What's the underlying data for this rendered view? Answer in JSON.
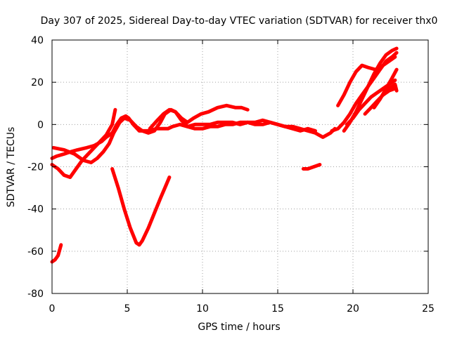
{
  "chart_data": {
    "type": "line",
    "title": "Day 307 of 2025, Sidereal Day-to-day VTEC variation (SDTVAR) for receiver thx0",
    "xlabel": "GPS time / hours",
    "ylabel": "SDTVAR / TECUs",
    "xlim": [
      0,
      25
    ],
    "ylim": [
      -80,
      40
    ],
    "xticks": [
      0,
      5,
      10,
      15,
      20,
      25
    ],
    "yticks": [
      -80,
      -60,
      -40,
      -20,
      0,
      20,
      40
    ],
    "grid": true,
    "legend": "none",
    "color": "#ff0000",
    "series": [
      {
        "name": "s1",
        "x": [
          0.0,
          0.2,
          0.4,
          0.6
        ],
        "y": [
          -65,
          -64,
          -62,
          -57
        ]
      },
      {
        "name": "s2",
        "x": [
          0.0,
          0.3,
          0.8,
          1.2,
          1.7,
          2.3,
          2.8,
          3.3,
          3.6,
          4.0,
          4.3,
          4.6,
          4.9,
          5.1,
          5.4,
          5.8,
          6.1,
          6.5,
          6.9,
          7.3,
          7.7,
          8.0,
          8.5,
          9.0,
          9.5,
          10.0,
          10.5,
          11.0,
          11.5,
          12.0,
          12.5,
          13.0,
          13.5,
          14.0,
          14.5,
          15.0,
          15.5,
          16.0,
          16.5,
          17.0,
          17.5,
          18.0,
          18.5,
          18.8
        ],
        "y": [
          -16,
          -15,
          -14,
          -13,
          -12,
          -11,
          -10,
          -8,
          -6,
          -4,
          0,
          3,
          4,
          3,
          0,
          -3,
          -3,
          -3,
          -2,
          -2,
          -2,
          -1,
          0,
          -1,
          0,
          0,
          0,
          1,
          1,
          1,
          0,
          1,
          0,
          0,
          1,
          0,
          -1,
          -1,
          -2,
          -3,
          -4,
          -6,
          -4,
          -2
        ]
      },
      {
        "name": "s3",
        "x": [
          0.0,
          0.4,
          0.8,
          1.2,
          1.6,
          2.0,
          2.4,
          2.8,
          3.2,
          3.6,
          4.0,
          4.2
        ],
        "y": [
          -19,
          -21,
          -24,
          -25,
          -21,
          -17,
          -14,
          -11,
          -8,
          -5,
          0,
          7
        ]
      },
      {
        "name": "s4",
        "x": [
          0.1,
          0.8,
          1.5,
          2.1,
          2.6,
          3.0,
          3.4,
          3.8,
          4.1,
          4.5,
          4.8,
          5.2,
          5.6,
          6.0,
          6.4,
          6.8,
          7.2,
          7.5,
          7.9,
          8.2,
          8.6,
          9.0,
          9.4,
          9.9,
          10.4,
          11.0,
          11.6,
          12.2,
          12.6,
          13.0
        ],
        "y": [
          -11,
          -12,
          -14,
          -17,
          -18,
          -16,
          -13,
          -9,
          -4,
          1,
          3,
          2,
          -1,
          -3,
          -4,
          -3,
          1,
          5,
          7,
          6,
          3,
          1,
          3,
          5,
          6,
          8,
          9,
          8,
          8,
          7
        ]
      },
      {
        "name": "s5",
        "x": [
          6.5,
          7.0,
          7.4,
          7.8,
          8.2,
          8.6,
          9.0,
          9.5,
          10.0,
          10.5,
          11.0,
          11.5,
          12.0,
          12.5,
          13.0,
          13.5,
          14.0,
          14.5,
          15.0,
          15.5,
          16.0,
          16.5,
          17.0,
          17.5
        ],
        "y": [
          -2,
          2,
          5,
          7,
          6,
          2,
          -1,
          -2,
          -2,
          -1,
          -1,
          0,
          0,
          1,
          1,
          1,
          2,
          1,
          0,
          -1,
          -2,
          -3,
          -2,
          -3
        ]
      },
      {
        "name": "s6",
        "x": [
          4.0,
          4.4,
          4.8,
          5.2,
          5.6,
          5.8,
          6.0,
          6.4,
          6.8,
          7.2,
          7.5,
          7.8
        ],
        "y": [
          -21,
          -30,
          -40,
          -49,
          -56,
          -57,
          -55,
          -49,
          -42,
          -35,
          -30,
          -25
        ]
      },
      {
        "name": "s7",
        "x": [
          16.7,
          17.0,
          17.4,
          17.8
        ],
        "y": [
          -21,
          -21,
          -20,
          -19
        ]
      },
      {
        "name": "s8",
        "x": [
          19.0,
          19.4,
          19.8,
          20.2,
          20.6,
          21.0,
          21.5,
          22.0,
          22.4,
          22.8
        ],
        "y": [
          9,
          14,
          20,
          25,
          28,
          27,
          26,
          28,
          30,
          32
        ]
      },
      {
        "name": "s9",
        "x": [
          19.4,
          19.8,
          20.2,
          20.6,
          21.0,
          21.4,
          21.8,
          22.2,
          22.6,
          22.9
        ],
        "y": [
          -3,
          1,
          6,
          12,
          18,
          24,
          29,
          33,
          35,
          36
        ]
      },
      {
        "name": "s10",
        "x": [
          18.6,
          19.0,
          19.4,
          19.8,
          20.2,
          20.6,
          21.0,
          21.4,
          21.8,
          22.2,
          22.6,
          22.9
        ],
        "y": [
          -3,
          -2,
          1,
          5,
          10,
          14,
          18,
          22,
          26,
          30,
          32,
          34
        ]
      },
      {
        "name": "s11",
        "x": [
          19.6,
          20.0,
          20.4,
          20.8,
          21.2,
          21.6,
          22.0,
          22.4,
          22.8
        ],
        "y": [
          0,
          3,
          7,
          10,
          13,
          15,
          17,
          19,
          21
        ]
      },
      {
        "name": "s12",
        "x": [
          20.8,
          21.2,
          21.6,
          22.0,
          22.4,
          22.8
        ],
        "y": [
          5,
          8,
          11,
          14,
          16,
          17
        ]
      },
      {
        "name": "s13",
        "x": [
          21.4,
          21.8,
          22.2,
          22.6,
          22.9
        ],
        "y": [
          8,
          12,
          17,
          22,
          26
        ]
      },
      {
        "name": "s14",
        "x": [
          22.0,
          22.4,
          22.8,
          22.9
        ],
        "y": [
          14,
          17,
          19,
          16
        ]
      }
    ]
  }
}
